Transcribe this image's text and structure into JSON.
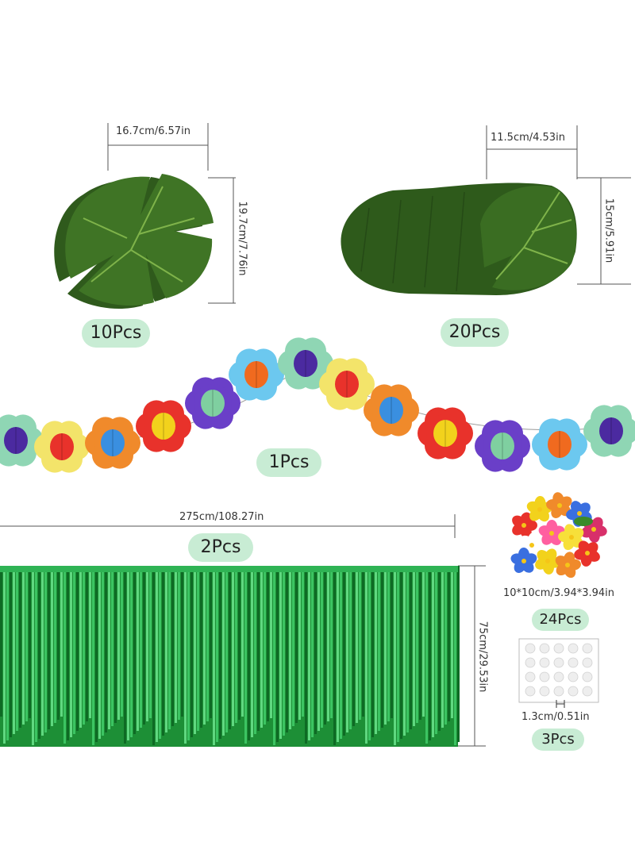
{
  "items": {
    "big_leaf": {
      "width_label": "16.7cm/6.57in",
      "height_label": "19.7cm/7.76in",
      "qty": "10Pcs"
    },
    "small_leaf": {
      "width_label": "11.5cm/4.53in",
      "height_label": "15cm/5.91in",
      "qty": "20Pcs"
    },
    "garland": {
      "qty": "1Pcs"
    },
    "fringe": {
      "width_label": "275cm/108.27in",
      "height_label": "75cm/29.53in",
      "qty": "2Pcs"
    },
    "flowers": {
      "size_label": "10*10cm/3.94*3.94in",
      "qty": "24Pcs"
    },
    "glue_dots": {
      "size_label": "1.3cm/0.51in",
      "qty": "3Pcs"
    }
  },
  "colors": {
    "leaf_dark": "#2f5a1c",
    "leaf_light": "#4f8a2e",
    "fringe_green": "#1f9a3a",
    "badge_bg": "#c8ecd4",
    "dim_line": "#555555"
  },
  "icons": [
    "monstera-leaf-icon",
    "paper-flower-icon",
    "foil-fringe-icon",
    "hibiscus-flower-icon",
    "glue-dot-sheet-icon"
  ]
}
